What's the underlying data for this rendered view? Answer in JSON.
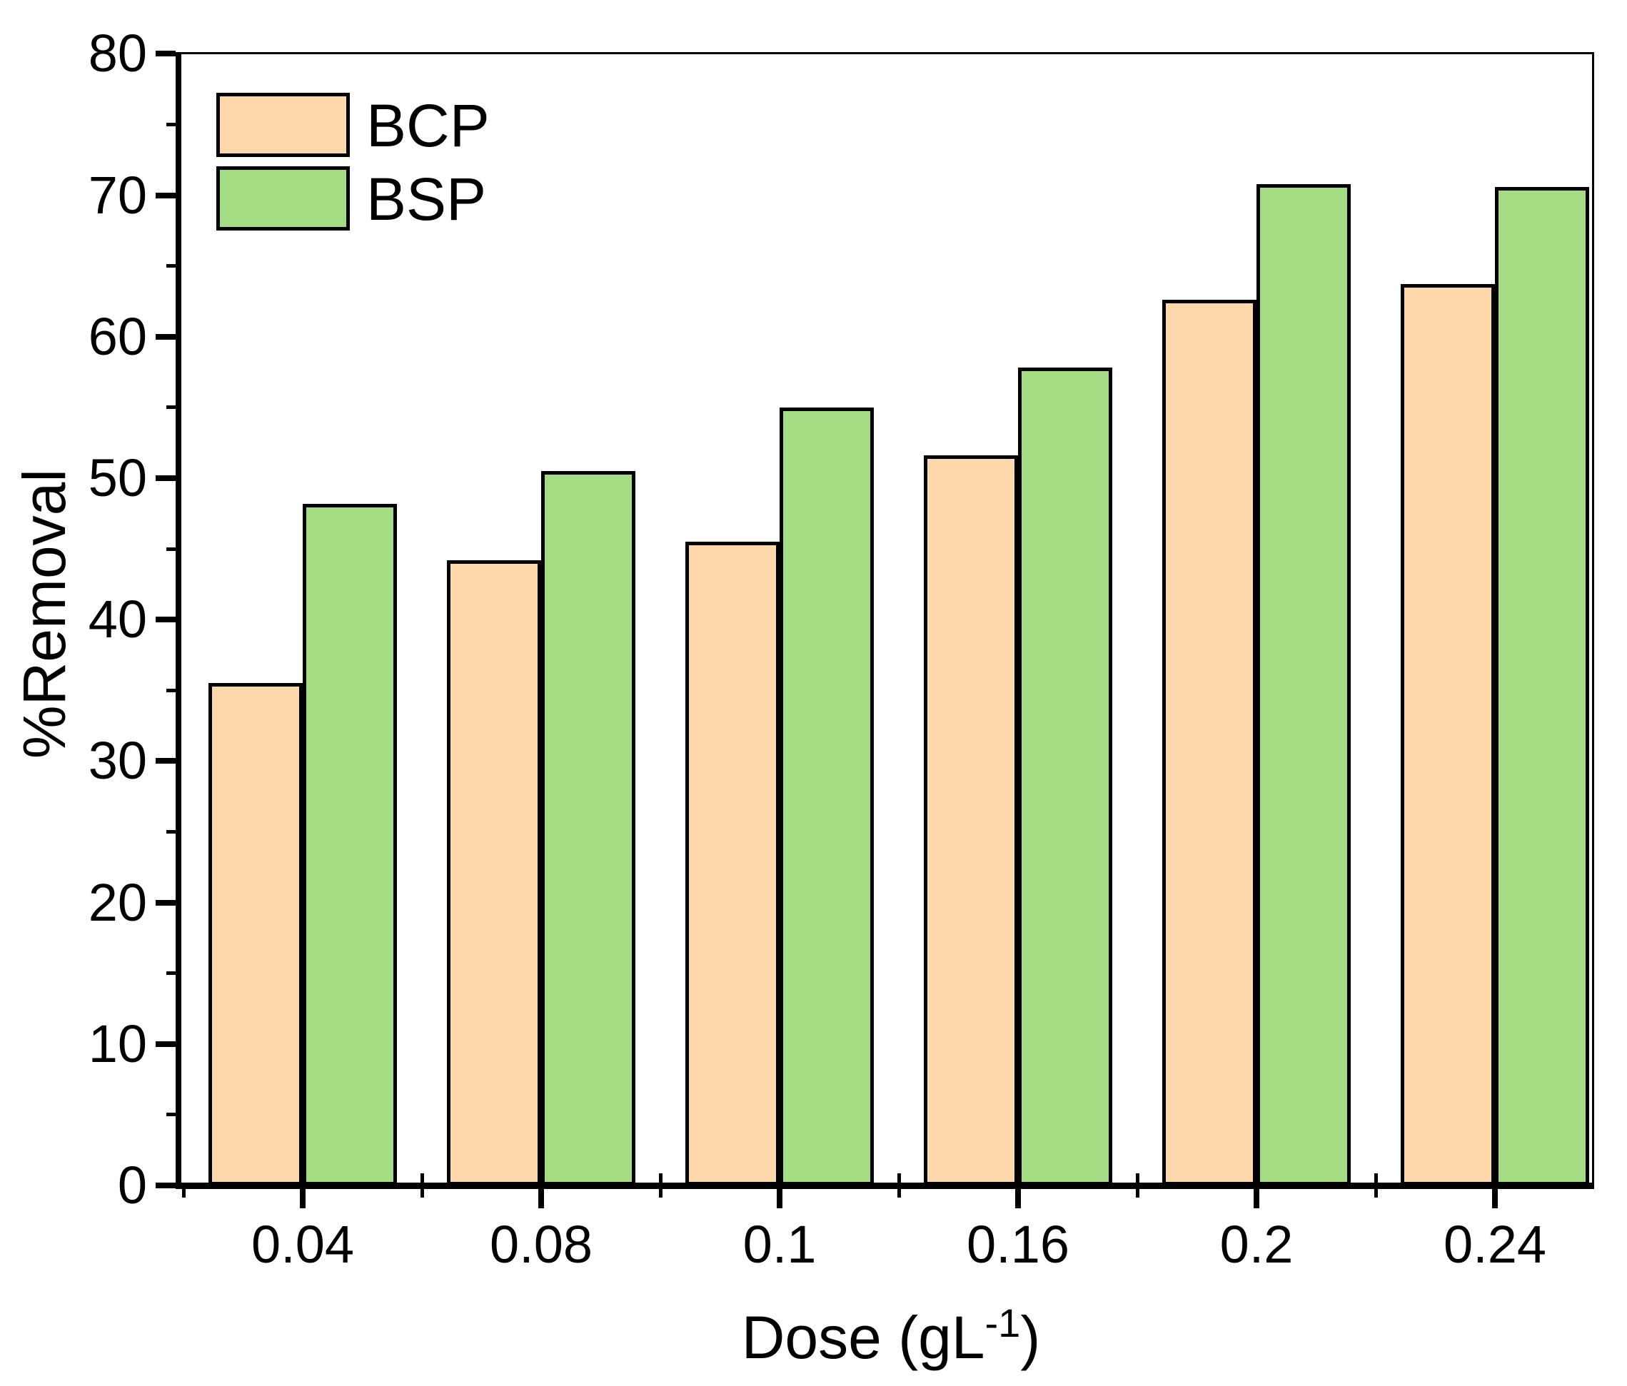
{
  "chart_data": {
    "type": "bar",
    "title": "",
    "categories": [
      "0.04",
      "0.08",
      "0.1",
      "0.16",
      "0.2",
      "0.24"
    ],
    "series": [
      {
        "name": "BCP",
        "fill_color": "#FED7AA",
        "edge_color": "#000000",
        "values": [
          35.3,
          44.0,
          45.3,
          51.4,
          62.4,
          63.5
        ]
      },
      {
        "name": "BSP",
        "fill_color": "#A4DC83",
        "edge_color": "#000000",
        "values": [
          48.0,
          50.3,
          54.8,
          57.6,
          70.6,
          70.4
        ]
      }
    ],
    "x_axis": {
      "label_prefix": "Dose (gL",
      "label_superscript": "-1",
      "label_suffix": ")",
      "tick_labels": [
        "0.04",
        "0.08",
        "0.1",
        "0.16",
        "0.2",
        "0.24"
      ]
    },
    "y_axis": {
      "label": "%Removal",
      "min": 0,
      "max": 80,
      "major_step": 10,
      "minor_step": 5,
      "tick_labels": [
        "0",
        "10",
        "20",
        "30",
        "40",
        "50",
        "60",
        "70",
        "80"
      ]
    },
    "legend": {
      "position": "top-left",
      "entries": [
        "BCP",
        "BSP"
      ]
    },
    "grid": false,
    "background_color": "#FFFFFF",
    "frame_color": "#000000"
  }
}
